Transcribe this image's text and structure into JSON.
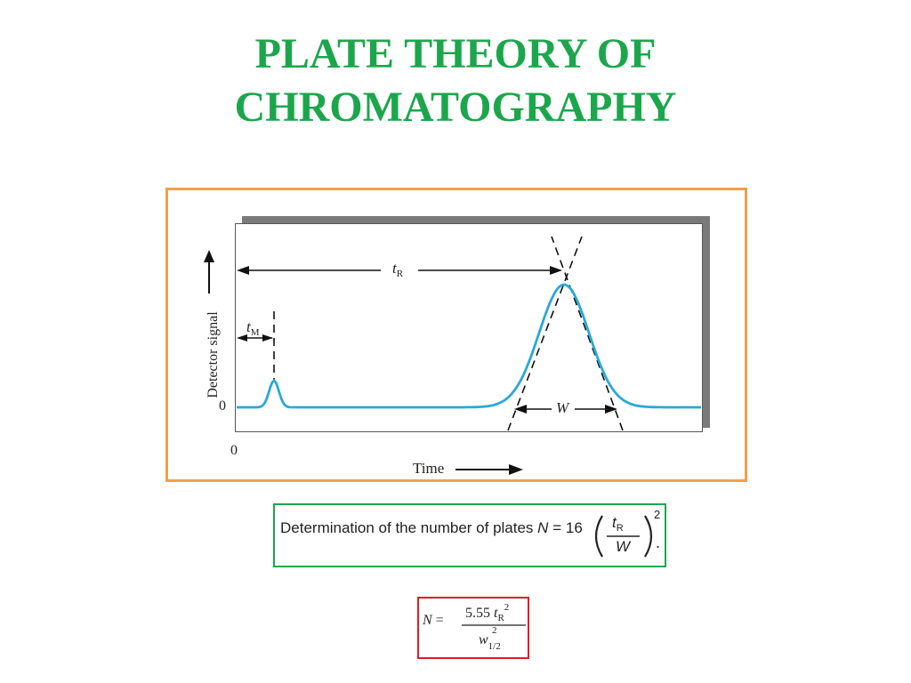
{
  "title": {
    "line1": "PLATE THEORY OF",
    "line2": "CHROMATOGRAPHY"
  },
  "diagram": {
    "y_axis_label": "Detector signal",
    "y_zero_label": "0",
    "x_zero_label": "0",
    "x_axis_label": "Time",
    "tr_label": "t",
    "tr_sub": "R",
    "tm_label": "t",
    "tm_sub": "M",
    "w_label": "W",
    "colors": {
      "frame": "#f0a04b",
      "trace": "#29a9d8",
      "title": "#1ca64c"
    }
  },
  "formula1": {
    "text": "Determination of the number of plates",
    "lhs": "N",
    "equals": "=",
    "coef": "16",
    "num": "t",
    "num_sub": "R",
    "den": "W",
    "exp": "2",
    "end": ".",
    "border_color": "#1ca64c"
  },
  "formula2": {
    "lhs": "N",
    "equals": "=",
    "num": "5.55",
    "var": "t",
    "var_sub": "R",
    "exp": "2",
    "den": "w",
    "den_sub": "1/2",
    "den_exp": "2",
    "border_color": "#e31b23"
  }
}
